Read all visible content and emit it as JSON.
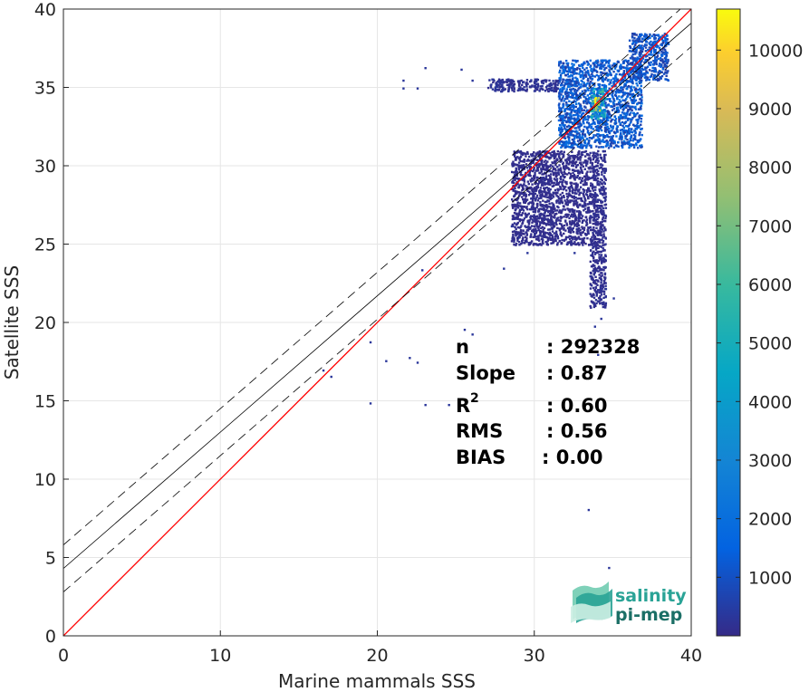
{
  "chart_data": {
    "type": "heatmap",
    "title": "",
    "xlabel": "Marine mammals SSS",
    "ylabel": "Satellite SSS",
    "xlim": [
      0,
      40
    ],
    "ylim": [
      0,
      40
    ],
    "xticks": [
      "0",
      "10",
      "20",
      "30",
      "40"
    ],
    "yticks": [
      "0",
      "5",
      "10",
      "15",
      "20",
      "25",
      "30",
      "35",
      "40"
    ],
    "grid": true,
    "colorbar": {
      "range": [
        0,
        10700
      ],
      "ticks": [
        "1000",
        "2000",
        "3000",
        "4000",
        "5000",
        "6000",
        "7000",
        "8000",
        "9000",
        "10000"
      ],
      "colormap": "parula"
    },
    "lines": [
      {
        "name": "identity",
        "color": "#ff0000",
        "intercept": 0,
        "slope": 1
      },
      {
        "name": "fit",
        "color": "#000000",
        "intercept": 4.3,
        "slope": 0.87
      },
      {
        "name": "fit-upper",
        "color": "#000000",
        "style": "dashed",
        "intercept": 5.8,
        "slope": 0.87
      },
      {
        "name": "fit-lower",
        "color": "#000000",
        "style": "dashed",
        "intercept": 2.8,
        "slope": 0.87
      }
    ],
    "density_regions": [
      {
        "name": "main-cluster",
        "x": [
          31.5,
          36.8
        ],
        "y": [
          31.2,
          36.8
        ],
        "level": 1800
      },
      {
        "name": "core",
        "x": [
          33.5,
          34.5
        ],
        "y": [
          33.0,
          35.0
        ],
        "level": 6000
      },
      {
        "name": "peak",
        "x": [
          33.8,
          34.1
        ],
        "y": [
          33.6,
          34.4
        ],
        "level": 10000
      },
      {
        "name": "upper-tail",
        "x": [
          36.0,
          38.5
        ],
        "y": [
          35.5,
          38.5
        ],
        "level": 1500
      },
      {
        "name": "horizontal-spread",
        "x": [
          27.0,
          31.5
        ],
        "y": [
          34.8,
          35.6
        ],
        "level": 300
      },
      {
        "name": "vertical-tail",
        "x": [
          33.5,
          34.5
        ],
        "y": [
          21.0,
          31.0
        ],
        "level": 200
      },
      {
        "name": "left-tail",
        "x": [
          28.5,
          33.5
        ],
        "y": [
          25.0,
          31.0
        ],
        "level": 150
      }
    ],
    "sparse_points": [
      [
        21.6,
        35.5
      ],
      [
        21.6,
        35.0
      ],
      [
        23.0,
        36.3
      ],
      [
        25.3,
        36.2
      ],
      [
        22.5,
        35.0
      ],
      [
        26.0,
        35.5
      ],
      [
        25.5,
        19.6
      ],
      [
        26.0,
        19.3
      ],
      [
        22.5,
        17.5
      ],
      [
        22.0,
        17.8
      ],
      [
        23.0,
        14.8
      ],
      [
        24.5,
        14.8
      ],
      [
        19.5,
        14.9
      ],
      [
        20.5,
        17.6
      ],
      [
        16.5,
        17.0
      ],
      [
        17.0,
        16.6
      ],
      [
        19.5,
        18.8
      ],
      [
        22.8,
        23.4
      ],
      [
        33.4,
        8.1
      ],
      [
        34.7,
        4.4
      ],
      [
        28.5,
        26.2
      ],
      [
        29.0,
        25.5
      ],
      [
        29.5,
        24.5
      ],
      [
        28.0,
        23.5
      ],
      [
        33.8,
        19.8
      ],
      [
        34.0,
        18.0
      ],
      [
        34.2,
        20.3
      ],
      [
        34.5,
        22.2
      ],
      [
        35.0,
        21.6
      ],
      [
        32.5,
        24.5
      ]
    ],
    "stats": {
      "n_label": "n",
      "n_value": ": 292328",
      "slope_label": "Slope",
      "slope_value": ": 0.87",
      "r2_label": "R",
      "r2_sup": "2",
      "r2_value": ": 0.60",
      "rms_label": "RMS",
      "rms_value": ": 0.56",
      "bias_label": "BIAS",
      "bias_value": ": 0.00"
    }
  },
  "logo": {
    "line1": "salinity",
    "line2": "pi-mep",
    "colors": [
      "#2aa396",
      "#1b6f66",
      "#7fd1b9"
    ]
  }
}
